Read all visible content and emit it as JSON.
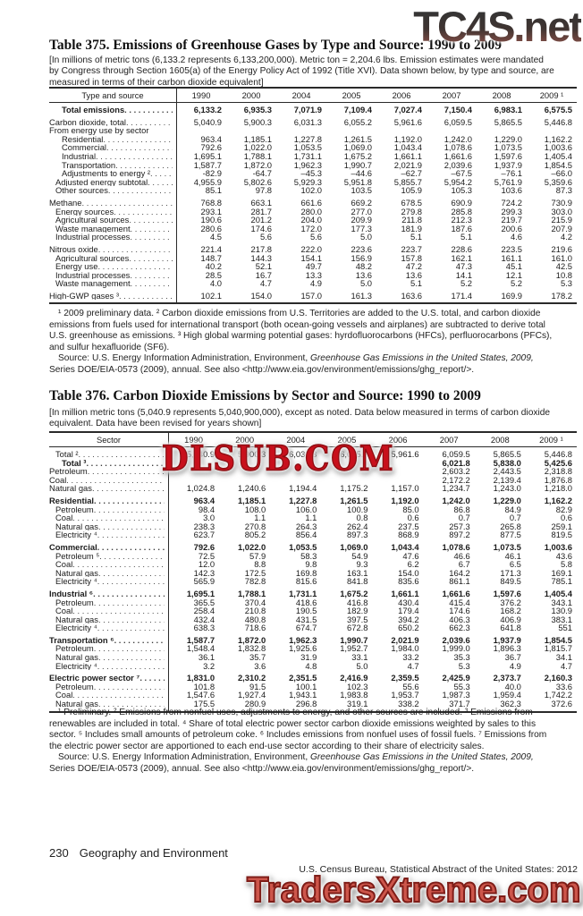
{
  "watermarks": {
    "top": "TC4S.net",
    "middle": "DLSUB.COM",
    "bottom": "TradersXtreme.com"
  },
  "page_footer": {
    "page_number": "230",
    "section": "Geography and Environment",
    "source": "U.S. Census Bureau, Statistical Abstract of the United States: 2012"
  },
  "table375": {
    "title": "Table 375. Emissions of Greenhouse Gases by Type and Source: 1990 to 2009",
    "bracket_note": "[In millions of metric tons (6,133.2 represents 6,133,200,000). Metric ton = 2,204.6 lbs. Emission estimates were mandated by Congress through Section 1605(a) of the Energy Policy Act of 1992 (Title XVI).  Data shown below, by type and source, are measured in terms of their carbon dioxide equivalent]",
    "stub_header": "Type and source",
    "years": [
      "1990",
      "2000",
      "2004",
      "2005",
      "2006",
      "2007",
      "2008",
      "2009 ¹"
    ],
    "rows": [
      {
        "label": "Total emissions",
        "indent": 2,
        "bold": true,
        "values": [
          "6,133.2",
          "6,935.3",
          "7,071.9",
          "7,109.4",
          "7,027.4",
          "7,150.4",
          "6,983.1",
          "6,575.5"
        ]
      },
      {
        "label": "Carbon dioxide, total",
        "indent": 0,
        "gap": true,
        "values": [
          "5,040.9",
          "5,900.3",
          "6,031.3",
          "6,055.2",
          "5,961.6",
          "6,059.5",
          "5,865.5",
          "5,446.8"
        ]
      },
      {
        "label": "From energy use by sector",
        "indent": 0,
        "leaders": false,
        "values": [
          "",
          "",
          "",
          "",
          "",
          "",
          "",
          ""
        ]
      },
      {
        "label": "Residential",
        "indent": 2,
        "values": [
          "963.4",
          "1,185.1",
          "1,227.8",
          "1,261.5",
          "1,192.0",
          "1,242.0",
          "1,229.0",
          "1,162.2"
        ]
      },
      {
        "label": "Commercial",
        "indent": 2,
        "values": [
          "792.6",
          "1,022.0",
          "1,053.5",
          "1,069.0",
          "1,043.4",
          "1,078.6",
          "1,073.5",
          "1,003.6"
        ]
      },
      {
        "label": "Industrial",
        "indent": 2,
        "values": [
          "1,695.1",
          "1,788.1",
          "1,731.1",
          "1,675.2",
          "1,661.1",
          "1,661.6",
          "1,597.6",
          "1,405.4"
        ]
      },
      {
        "label": "Transportation",
        "indent": 2,
        "values": [
          "1,587.7",
          "1,872.0",
          "1,962.3",
          "1,990.7",
          "2,021.9",
          "2,039.6",
          "1,937.9",
          "1,854.5"
        ]
      },
      {
        "label": "Adjustments to energy ²",
        "indent": 2,
        "values": [
          "-82.9",
          "-64.7",
          "–45.3",
          "–44.6",
          "–62.7",
          "–67.5",
          "–76.1",
          "–66.0"
        ]
      },
      {
        "label": "Adjusted energy subtotal",
        "indent": 1,
        "values": [
          "4,955.9",
          "5,802.6",
          "5,929.3",
          "5,951.8",
          "5,855.7",
          "5,954.2",
          "5,761.9",
          "5,359.6"
        ]
      },
      {
        "label": "Other sources",
        "indent": 1,
        "values": [
          "85.1",
          "97.8",
          "102.0",
          "103.5",
          "105.9",
          "105.3",
          "103.6",
          "87.3"
        ]
      },
      {
        "label": "Methane",
        "indent": 0,
        "gap": true,
        "values": [
          "768.8",
          "663.1",
          "661.6",
          "669.2",
          "678.5",
          "690.9",
          "724.2",
          "730.9"
        ]
      },
      {
        "label": "Energy sources",
        "indent": 1,
        "values": [
          "293.1",
          "281.7",
          "280.0",
          "277.0",
          "279.8",
          "285.8",
          "299.3",
          "303.0"
        ]
      },
      {
        "label": "Agricultural sources",
        "indent": 1,
        "values": [
          "190.6",
          "201.2",
          "204.0",
          "209.9",
          "211.8",
          "212.3",
          "219.7",
          "215.9"
        ]
      },
      {
        "label": "Waste management",
        "indent": 1,
        "values": [
          "280.6",
          "174.6",
          "172.0",
          "177.3",
          "181.9",
          "187.6",
          "200.6",
          "207.9"
        ]
      },
      {
        "label": "Industrial processes",
        "indent": 1,
        "values": [
          "4.5",
          "5.6",
          "5.6",
          "5.0",
          "5.1",
          "5.1",
          "4.6",
          "4.2"
        ]
      },
      {
        "label": "Nitrous oxide",
        "indent": 0,
        "gap": true,
        "values": [
          "221.4",
          "217.8",
          "222.0",
          "223.6",
          "223.7",
          "228.6",
          "223.5",
          "219.6"
        ]
      },
      {
        "label": "Agricultural sources",
        "indent": 1,
        "values": [
          "148.7",
          "144.3",
          "154.1",
          "156.9",
          "157.8",
          "162.1",
          "161.1",
          "161.0"
        ]
      },
      {
        "label": "Energy use",
        "indent": 1,
        "values": [
          "40.2",
          "52.1",
          "49.7",
          "48.2",
          "47.2",
          "47.3",
          "45.1",
          "42.5"
        ]
      },
      {
        "label": "Industrial processes",
        "indent": 1,
        "values": [
          "28.5",
          "16.7",
          "13.3",
          "13.6",
          "13.6",
          "14.1",
          "12.1",
          "10.8"
        ]
      },
      {
        "label": "Waste management",
        "indent": 1,
        "values": [
          "4.0",
          "4.7",
          "4.9",
          "5.0",
          "5.1",
          "5.2",
          "5.2",
          "5.3"
        ]
      },
      {
        "label": "High-GWP gases ³",
        "indent": 0,
        "gap": true,
        "values": [
          "102.1",
          "154.0",
          "157.0",
          "161.3",
          "163.6",
          "171.4",
          "169.9",
          "178.2"
        ]
      }
    ],
    "footnote": "¹ 2009 preliminary data. ² Carbon dioxide emissions from U.S. Territories are added to the U.S. total, and carbon dioxide emissions from fuels used for international  transport (both ocean-going vessels and airplanes) are subtracted to derive total U.S. greenhouse as emissions. ³ High global warming potential gases: hyrdofluorocarbons (HFCs), perfluorocarbons (PFCs), and sulfur hexafluoride (SF6).",
    "source_prefix": "Source: U.S. Energy Information Administration, Environment, ",
    "source_italic": "Greenhouse Gas Emissions in the United States, 2009,",
    "source_suffix": " Series DOE/EIA-0573 (2009), annual. See also <http://www.eia.gov/environment/emissions/ghg_report/>."
  },
  "table376": {
    "title": "Table 376. Carbon Dioxide Emissions by Sector and Source: 1990 to 2009",
    "bracket_note": "[In million metric tons (5,040.9 represents 5,040,900,000), except as noted. Data below measured in terms of carbon dioxide equivalent. Data have been revised for years shown]",
    "stub_header": "Sector",
    "years": [
      "1990",
      "2000",
      "2004",
      "2005",
      "2006",
      "2007",
      "2008",
      "2009 ¹"
    ],
    "rows": [
      {
        "label": "Total ²",
        "indent": 1,
        "values": [
          "5,040.9",
          "5,900.3",
          "6,031.3",
          "6,055.2",
          "5,961.6",
          "6,059.5",
          "5,865.5",
          "5,446.8"
        ]
      },
      {
        "label": "Total ³",
        "indent": 2,
        "bold": true,
        "values": [
          "",
          "",
          "",
          "",
          "",
          "6,021.8",
          "5,838.0",
          "5,425.6"
        ]
      },
      {
        "label": "Petroleum",
        "indent": 0,
        "values": [
          "",
          "",
          "",
          "",
          "",
          "2,603.2",
          "2,443.5",
          "2,318.8"
        ]
      },
      {
        "label": "Coal",
        "indent": 0,
        "values": [
          "",
          "",
          "",
          "",
          "",
          "2,172.2",
          "2,139.4",
          "1,876.8"
        ]
      },
      {
        "label": "Natural gas",
        "indent": 0,
        "values": [
          "1,024.8",
          "1,240.6",
          "1,194.4",
          "1,175.2",
          "1,157.0",
          "1,234.7",
          "1,243.0",
          "1,218.0"
        ]
      },
      {
        "label": "Residential",
        "indent": 0,
        "bold": true,
        "gap": true,
        "values": [
          "963.4",
          "1,185.1",
          "1,227.8",
          "1,261.5",
          "1,192.0",
          "1,242.0",
          "1,229.0",
          "1,162.2"
        ]
      },
      {
        "label": "Petroleum",
        "indent": 1,
        "values": [
          "98.4",
          "108.0",
          "106.0",
          "100.9",
          "85.0",
          "86.8",
          "84.9",
          "82.9"
        ]
      },
      {
        "label": "Coal",
        "indent": 1,
        "values": [
          "3.0",
          "1.1",
          "1.1",
          "0.8",
          "0.6",
          "0.7",
          "0.7",
          "0.6"
        ]
      },
      {
        "label": "Natural gas",
        "indent": 1,
        "values": [
          "238.3",
          "270.8",
          "264.3",
          "262.4",
          "237.5",
          "257.3",
          "265.8",
          "259.1"
        ]
      },
      {
        "label": "Electricity ⁴",
        "indent": 1,
        "values": [
          "623.7",
          "805.2",
          "856.4",
          "897.3",
          "868.9",
          "897.2",
          "877.5",
          "819.5"
        ]
      },
      {
        "label": "Commercial",
        "indent": 0,
        "bold": true,
        "gap": true,
        "values": [
          "792.6",
          "1,022.0",
          "1,053.5",
          "1,069.0",
          "1,043.4",
          "1,078.6",
          "1,073.5",
          "1,003.6"
        ]
      },
      {
        "label": "Petroleum ⁵",
        "indent": 1,
        "values": [
          "72.5",
          "57.9",
          "58.3",
          "54.9",
          "47.6",
          "46.6",
          "46.1",
          "43.6"
        ]
      },
      {
        "label": "Coal",
        "indent": 1,
        "values": [
          "12.0",
          "8.8",
          "9.8",
          "9.3",
          "6.2",
          "6.7",
          "6.5",
          "5.8"
        ]
      },
      {
        "label": "Natural gas",
        "indent": 1,
        "values": [
          "142.3",
          "172.5",
          "169.8",
          "163.1",
          "154.0",
          "164.2",
          "171.3",
          "169.1"
        ]
      },
      {
        "label": "Electricity ⁴",
        "indent": 1,
        "values": [
          "565.9",
          "782.8",
          "815.6",
          "841.8",
          "835.6",
          "861.1",
          "849.5",
          "785.1"
        ]
      },
      {
        "label": "Industrial ⁶",
        "indent": 0,
        "bold": true,
        "gap": true,
        "values": [
          "1,695.1",
          "1,788.1",
          "1,731.1",
          "1,675.2",
          "1,661.1",
          "1,661.6",
          "1,597.6",
          "1,405.4"
        ]
      },
      {
        "label": "Petroleum",
        "indent": 1,
        "values": [
          "365.5",
          "370.4",
          "418.6",
          "416.8",
          "430.4",
          "415.4",
          "376.2",
          "343.1"
        ]
      },
      {
        "label": "Coal",
        "indent": 1,
        "values": [
          "258.4",
          "210.8",
          "190.5",
          "182.9",
          "179.4",
          "174.6",
          "168.2",
          "130.9"
        ]
      },
      {
        "label": "Natural gas",
        "indent": 1,
        "values": [
          "432.4",
          "480.8",
          "431.5",
          "397.5",
          "394.2",
          "406.3",
          "406.9",
          "383.1"
        ]
      },
      {
        "label": "Electricity ⁴",
        "indent": 1,
        "values": [
          "638.3",
          "718.6",
          "674.7",
          "672.8",
          "650.2",
          "662.3",
          "641.8",
          "551"
        ]
      },
      {
        "label": "Transportation ⁶",
        "indent": 0,
        "bold": true,
        "gap": true,
        "values": [
          "1,587.7",
          "1,872.0",
          "1,962.3",
          "1,990.7",
          "2,021.9",
          "2,039.6",
          "1,937.9",
          "1,854.5"
        ]
      },
      {
        "label": "Petroleum",
        "indent": 1,
        "values": [
          "1,548.4",
          "1,832.8",
          "1,925.6",
          "1,952.7",
          "1,984.0",
          "1,999.0",
          "1,896.3",
          "1,815.7"
        ]
      },
      {
        "label": "Natural gas",
        "indent": 1,
        "values": [
          "36.1",
          "35.7",
          "31.9",
          "33.1",
          "33.2",
          "35.3",
          "36.7",
          "34.1"
        ]
      },
      {
        "label": "Electricity ⁴",
        "indent": 1,
        "values": [
          "3.2",
          "3.6",
          "4.8",
          "5.0",
          "4.7",
          "5.3",
          "4.9",
          "4.7"
        ]
      },
      {
        "label": "Electric power sector ⁷",
        "indent": 0,
        "bold": true,
        "gap": true,
        "values": [
          "1,831.0",
          "2,310.2",
          "2,351.5",
          "2,416.9",
          "2,359.5",
          "2,425.9",
          "2,373.7",
          "2,160.3"
        ]
      },
      {
        "label": "Petroleum",
        "indent": 1,
        "values": [
          "101.8",
          "91.5",
          "100.1",
          "102.3",
          "55.6",
          "55.3",
          "40.0",
          "33.6"
        ]
      },
      {
        "label": "Coal",
        "indent": 1,
        "values": [
          "1,547.6",
          "1,927.4",
          "1,943.1",
          "1,983.8",
          "1,953.7",
          "1,987.3",
          "1,959.4",
          "1,742.2"
        ]
      },
      {
        "label": "Natural gas",
        "indent": 1,
        "values": [
          "175.5",
          "280.9",
          "296.8",
          "319.1",
          "338.2",
          "371.7",
          "362.3",
          "372.6"
        ]
      }
    ],
    "footnote": "¹ Preliminary. ² Emissions from nonfuel uses, adjustments to energy, and other sources are included. ³ Emissions from renewables are included in total. ⁴ Share of total electric power sector carbon dioxide emissions weighted by sales to this sector. ⁵ Includes small amounts of petroleum coke. ⁶ Includes emissions from nonfuel uses of fossil fuels. ⁷ Emissions from the electric power sector are apportioned to each end-use sector according to their share of electricity sales.",
    "source_prefix": "Source: U.S. Energy Information Administration, Environment, ",
    "source_italic": "Greenhouse Gas Emissions in the United States, 2009,",
    "source_suffix": " Series DOE/EIA-0573 (2009), annual. See also <http://www.eia.gov/environment/emissions/ghg_report/>."
  }
}
